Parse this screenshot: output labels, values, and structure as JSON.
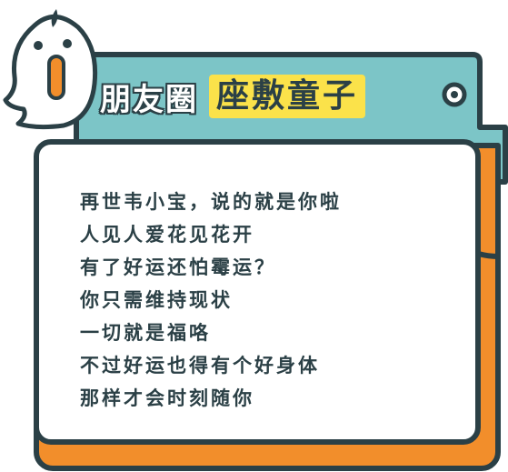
{
  "title": {
    "plain": "朋友圈",
    "highlight": "座敷童子"
  },
  "lines": [
    "再世韦小宝，说的就是你啦",
    "人见人爱花见花开",
    "有了好运还怕霉运？",
    "你只需维持现状",
    "一切就是福咯",
    "不过好运也得有个好身体",
    "那样才会时刻随你"
  ],
  "colors": {
    "outline": "#2b4046",
    "teal": "#7cc5c7",
    "orange": "#f28e2b",
    "yellow": "#fbe24a",
    "background": "#ffffff"
  },
  "icons": [
    "ghost-mascot-icon",
    "ring-hole-icon"
  ]
}
